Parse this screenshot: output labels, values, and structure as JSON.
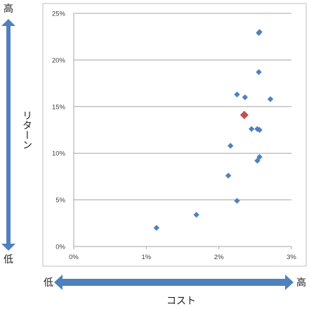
{
  "chart_data": {
    "type": "scatter",
    "xlim": [
      0,
      3
    ],
    "ylim": [
      0,
      25
    ],
    "x_ticks": [
      "0%",
      "1%",
      "2%",
      "3%"
    ],
    "y_ticks": [
      "0%",
      "5%",
      "10%",
      "15%",
      "20%",
      "25%"
    ],
    "grid": "horizontal",
    "series": [
      {
        "color": "#4f81bd",
        "points": [
          {
            "x": 1.14,
            "y": 2.0
          },
          {
            "x": 1.69,
            "y": 3.4
          },
          {
            "x": 2.13,
            "y": 7.6
          },
          {
            "x": 2.25,
            "y": 4.9
          },
          {
            "x": 2.16,
            "y": 10.8
          },
          {
            "x": 2.53,
            "y": 9.2
          },
          {
            "x": 2.56,
            "y": 9.6
          },
          {
            "x": 2.45,
            "y": 12.6
          },
          {
            "x": 2.53,
            "y": 12.6
          },
          {
            "x": 2.56,
            "y": 12.5
          },
          {
            "x": 2.25,
            "y": 16.3
          },
          {
            "x": 2.36,
            "y": 16.0
          },
          {
            "x": 2.71,
            "y": 15.8
          },
          {
            "x": 2.55,
            "y": 18.7
          },
          {
            "x": 2.55,
            "y": 22.9
          },
          {
            "x": 2.56,
            "y": 23.0
          }
        ]
      },
      {
        "color": "#c0504d",
        "points": [
          {
            "x": 2.35,
            "y": 14.1
          }
        ]
      }
    ]
  },
  "y_axis": {
    "label": "リターン",
    "high": "高",
    "low": "低"
  },
  "x_axis": {
    "label": "コスト",
    "high": "高",
    "low": "低"
  },
  "colors": {
    "arrow": "#4f81bd",
    "grid": "#a6a6a6",
    "frame": "#bfbfbf"
  }
}
